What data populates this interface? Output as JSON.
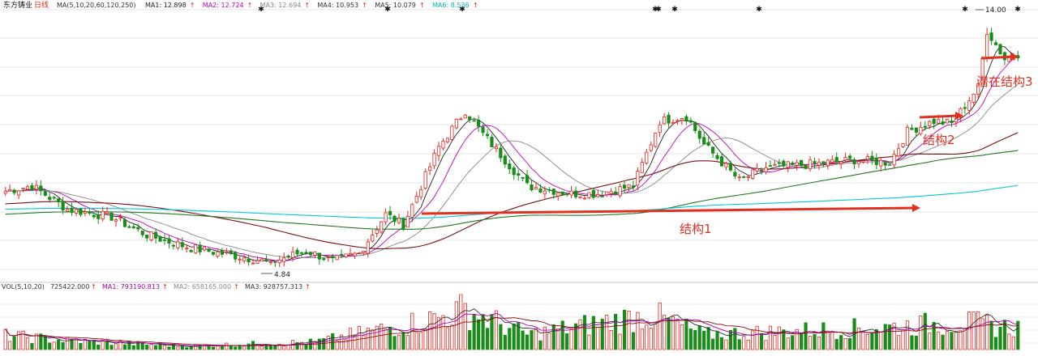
{
  "header": {
    "stock_name": "东方铸业",
    "period": "日线",
    "ma_label": "MA(5,10,20,60,120,250)",
    "ma_items": [
      {
        "label": "MA1: 12.898",
        "color": "#222222"
      },
      {
        "label": "MA2: 12.724",
        "color": "#c000c0"
      },
      {
        "label": "MA3: 12.694",
        "color": "#888888"
      },
      {
        "label": "MA4: 10.953",
        "color": "#333333"
      },
      {
        "label": "MA5: 10.079",
        "color": "#333333"
      },
      {
        "label": "MA6: 8.536",
        "color": "#00b7c3"
      }
    ],
    "up_arrow": "↑"
  },
  "volume_header": {
    "label": "VOL(5,10,20)",
    "items": [
      {
        "label": "725422.000",
        "color": "#333333"
      },
      {
        "label": "MA1: 793190.813",
        "color": "#a000a0"
      },
      {
        "label": "MA2: 658165.000",
        "color": "#888888"
      },
      {
        "label": "MA3: 928757.313",
        "color": "#333333"
      }
    ]
  },
  "annotations": {
    "low_price": "4.84",
    "high_price": "14.00",
    "structure1": "结构1",
    "structure2": "结构2",
    "structure3": "潜在结构3"
  },
  "chart_data": {
    "type": "candlestick",
    "title": "东方铸业 日线",
    "price_range": [
      4.3,
      14.7
    ],
    "candles_count": 230,
    "price_path": [
      [
        0,
        7.7
      ],
      [
        6,
        7.9
      ],
      [
        14,
        7.0
      ],
      [
        24,
        6.7
      ],
      [
        32,
        6.0
      ],
      [
        42,
        5.5
      ],
      [
        52,
        5.2
      ],
      [
        60,
        4.95
      ],
      [
        68,
        5.4
      ],
      [
        74,
        5.0
      ],
      [
        80,
        5.3
      ],
      [
        86,
        6.8
      ],
      [
        90,
        6.4
      ],
      [
        98,
        9.4
      ],
      [
        104,
        10.8
      ],
      [
        108,
        9.9
      ],
      [
        118,
        7.9
      ],
      [
        128,
        7.6
      ],
      [
        134,
        7.6
      ],
      [
        142,
        7.9
      ],
      [
        148,
        10.4
      ],
      [
        154,
        10.6
      ],
      [
        158,
        9.5
      ],
      [
        166,
        8.1
      ],
      [
        172,
        8.6
      ],
      [
        180,
        8.7
      ],
      [
        192,
        8.9
      ],
      [
        200,
        8.8
      ],
      [
        204,
        10.0
      ],
      [
        210,
        10.4
      ],
      [
        214,
        10.3
      ],
      [
        220,
        11.7
      ],
      [
        222,
        13.9
      ],
      [
        226,
        12.8
      ],
      [
        229,
        13.0
      ]
    ],
    "special_points": {
      "low": 4.84,
      "high": 14.0
    },
    "moving_averages": [
      {
        "name": "MA1",
        "period": 5,
        "color": "#222222"
      },
      {
        "name": "MA2",
        "period": 10,
        "color": "#c000c0"
      },
      {
        "name": "MA3",
        "period": 20,
        "color": "#888888"
      },
      {
        "name": "MA4",
        "period": 60,
        "color": "#7a1010"
      },
      {
        "name": "MA5",
        "period": 120,
        "color": "#1f7a1f"
      },
      {
        "name": "MA6",
        "period": 250,
        "color": "#00c8d8"
      }
    ],
    "volume_peaks": [
      [
        0,
        0.28
      ],
      [
        14,
        0.18
      ],
      [
        40,
        0.07
      ],
      [
        70,
        0.15
      ],
      [
        96,
        0.6
      ],
      [
        104,
        0.8
      ],
      [
        118,
        0.3
      ],
      [
        146,
        0.7
      ],
      [
        158,
        0.3
      ],
      [
        200,
        0.45
      ],
      [
        216,
        0.55
      ],
      [
        226,
        0.45
      ]
    ],
    "up_color": "#e4261f",
    "down_color": "#1a8c1a",
    "structures": [
      {
        "label": "结构1",
        "from_price": 7.3,
        "to_price": 7.3
      },
      {
        "label": "结构2",
        "from_price": 10.6,
        "to_price": 10.6
      },
      {
        "label": "潜在结构3",
        "from_price": 12.9,
        "to_price": 12.9
      }
    ],
    "grid": true
  }
}
